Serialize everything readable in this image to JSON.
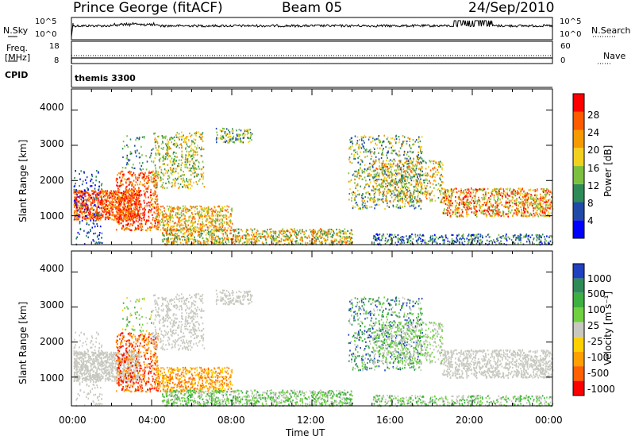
{
  "header": {
    "station": "Prince George (fitACF)",
    "beam": "Beam 05",
    "date": "24/Sep/2010"
  },
  "noise_panel": {
    "left_label": "N.Sky",
    "right_label": "N.Search",
    "left_ticks": [
      "10^5",
      "10^0"
    ],
    "right_ticks": [
      "10^5",
      "10^0"
    ]
  },
  "freq_panel": {
    "left_label_1": "Freq.",
    "left_label_2": "[MHz]",
    "right_label": "Nave",
    "left_ticks": [
      "18",
      "8"
    ],
    "right_ticks": [
      "60",
      "0"
    ],
    "cpid_label": "CPID",
    "cpid_value": "themis 3300"
  },
  "chart_data": [
    {
      "type": "heatmap",
      "name": "power-panel",
      "ylabel": "Slant Range [km]",
      "yticks": [
        "4000",
        "3000",
        "2000",
        "1000"
      ],
      "ylim": [
        180,
        4600
      ],
      "xlim": [
        0,
        24
      ],
      "colorbar": {
        "label": "Power [dB]",
        "ticks": [
          "28",
          "24",
          "20",
          "16",
          "12",
          "8",
          "4"
        ],
        "colors": [
          "#0000ff",
          "#1f4aa8",
          "#2e8b57",
          "#7cc040",
          "#f2d020",
          "#f59a00",
          "#ff5a00",
          "#ff0000"
        ]
      }
    },
    {
      "type": "heatmap",
      "name": "velocity-panel",
      "ylabel": "Slant Range [km]",
      "yticks": [
        "4000",
        "3000",
        "2000",
        "1000"
      ],
      "ylim": [
        180,
        4600
      ],
      "xlim": [
        0,
        24
      ],
      "xlabel": "Time UT",
      "xticks": [
        "00:00",
        "04:00",
        "08:00",
        "12:00",
        "16:00",
        "20:00",
        "00:00"
      ],
      "colorbar": {
        "label": "Velocity [m s⁻¹]",
        "ticks": [
          "1000",
          "500",
          "100",
          "25",
          "-25",
          "-100",
          "-500",
          "-1000"
        ],
        "colors": [
          "#2040c0",
          "#2e8b57",
          "#3cb040",
          "#70d040",
          "#c8c8c0",
          "#ffd000",
          "#ffa000",
          "#ff6000",
          "#ff0000"
        ]
      }
    }
  ]
}
